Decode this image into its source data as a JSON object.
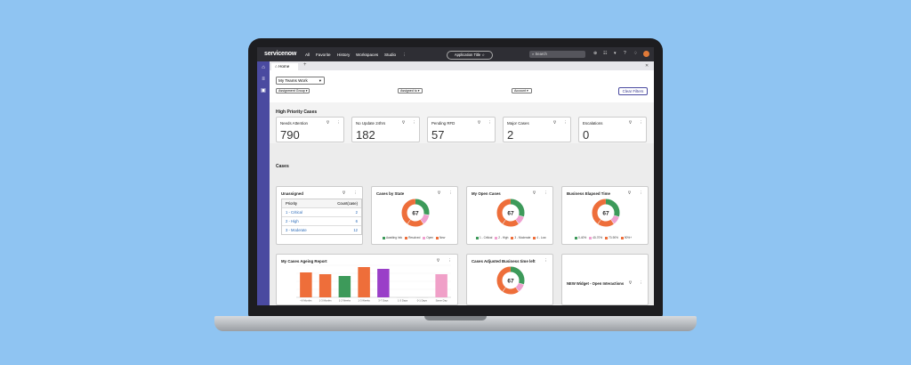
{
  "topnav": {
    "logo": "servicenow",
    "menu": [
      "All",
      "Favorite",
      "History",
      "Workspaces",
      "Studio"
    ],
    "more": "⋮",
    "app_title": "Application Title ☆",
    "search_placeholder": "Search"
  },
  "tabs": {
    "home_label": "Home",
    "add_label": "+"
  },
  "filters": {
    "view": "My Teams Work",
    "assignment_group": "Assignment Group",
    "assigned_to": "Assigned to",
    "account": "Account",
    "clear_label": "Clear Filters"
  },
  "high_priority": {
    "title": "High Priority Cases",
    "kpis": [
      {
        "label": "Needs Attention",
        "value": "790"
      },
      {
        "label": "No Update 24hrs",
        "value": "182"
      },
      {
        "label": "Pending RFD",
        "value": "57"
      },
      {
        "label": "Major Cases",
        "value": "2"
      },
      {
        "label": "Escalations",
        "value": "0"
      }
    ]
  },
  "cases": {
    "title": "Cases",
    "unassigned": {
      "title": "Unassigned",
      "headers": [
        "Priority",
        "Count(case)"
      ],
      "rows": [
        {
          "priority": "1 - Critical",
          "count": "2"
        },
        {
          "priority": "2 - High",
          "count": "6"
        },
        {
          "priority": "3 - Moderate",
          "count": "12"
        }
      ]
    },
    "donuts": [
      {
        "title": "Cases by State",
        "center": "67",
        "legend": [
          "Awaiting Info",
          "Resolved",
          "Open",
          "New"
        ],
        "slices": [
          0.28,
          0.12,
          0.2,
          0.4
        ],
        "colors": [
          "#3d9a5a",
          "#f0a0d0",
          "#ee6e3a",
          "#ee6e3a"
        ]
      },
      {
        "title": "My Open Cases",
        "center": "67",
        "legend": [
          "1 - Critical",
          "2 - High",
          "3 - Moderate",
          "4 - Low"
        ],
        "slices": [
          0.3,
          0.1,
          0.2,
          0.4
        ],
        "colors": [
          "#3d9a5a",
          "#f0a0d0",
          "#ee6e3a",
          "#ee6e3a"
        ]
      },
      {
        "title": "Business Elapsed Time",
        "center": "67",
        "legend": [
          "0-40%",
          "40-70%",
          "70-90%",
          "90%+"
        ],
        "slices": [
          0.3,
          0.1,
          0.2,
          0.4
        ],
        "colors": [
          "#3d9a5a",
          "#f0a0d0",
          "#ee6e3a",
          "#ee6e3a"
        ]
      }
    ],
    "ageing": {
      "title": "My Cases Ageing Report"
    },
    "adjusted": {
      "title": "Cases Adjusted Business time left",
      "center": "67",
      "slices": [
        0.3,
        0.1,
        0.2,
        0.4
      ],
      "colors": [
        "#3d9a5a",
        "#f0a0d0",
        "#ee6e3a",
        "#ee6e3a"
      ]
    },
    "new_widget": {
      "title": "NEW Widget - Open Interactions"
    }
  },
  "chart_data": {
    "type": "bar",
    "categories": [
      "<6 Months",
      "1-3 Months",
      "1-2 Weeks",
      "1-3 Weeks",
      "3-7 Days",
      "1-3 Days",
      "0-1 Days",
      "Same Day"
    ],
    "values": [
      140,
      130,
      120,
      170,
      160,
      0,
      0,
      130
    ],
    "colors": [
      "#ee6e3a",
      "#ee6e3a",
      "#3d9a5a",
      "#ee6e3a",
      "#9a3fc8",
      "#cccccc",
      "#cccccc",
      "#f0a0c8"
    ],
    "ylim": [
      0,
      180
    ]
  }
}
